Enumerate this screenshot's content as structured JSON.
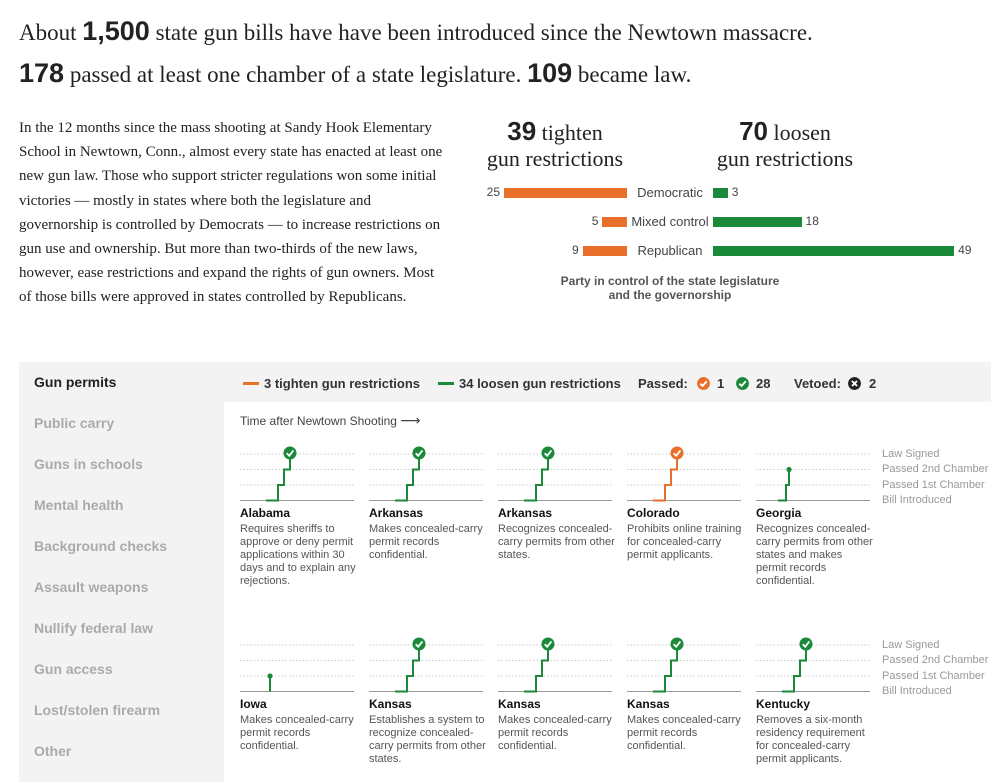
{
  "headline": {
    "line1_pre": "About ",
    "line1_num": "1,500",
    "line1_post": " state gun bills have have been introduced since the Newtown massacre.",
    "line2_num1": "178",
    "line2_mid": " passed at least one chamber of a state legislature. ",
    "line2_num2": "109",
    "line2_post": " became law."
  },
  "intro": "In the 12 months since the mass shooting at Sandy Hook Elementary School in Newtown, Conn., almost every state has enacted at least one new gun law. Those who support stricter regulations won some initial victories — mostly in states where both the legislature and governorship is controlled by Democrats — to increase restrictions on gun use and ownership. But more than two-thirds of the new laws, however, ease restrictions and expand the rights of gun owners. Most of those bills were approved in states controlled by Republicans.",
  "summary": {
    "tighten_num": "39",
    "tighten_word": "tighten",
    "tighten_sub": "gun restrictions",
    "loosen_num": "70",
    "loosen_word": "loosen",
    "loosen_sub": "gun restrictions",
    "caption": "Party in control of the state legislature and the governorship",
    "tighten_color": "#e8702a",
    "loosen_color": "#1a8a3a"
  },
  "chart_data": {
    "type": "bar",
    "categories": [
      "Democratic",
      "Mixed control",
      "Republican"
    ],
    "series": [
      {
        "name": "tighten gun restrictions",
        "values": [
          25,
          5,
          9
        ]
      },
      {
        "name": "loosen gun restrictions",
        "values": [
          3,
          18,
          49
        ]
      }
    ]
  },
  "nav": {
    "items": [
      "Gun permits",
      "Public carry",
      "Guns in schools",
      "Mental health",
      "Background checks",
      "Assault weapons",
      "Nullify federal law",
      "Gun access",
      "Lost/stolen firearm",
      "Other"
    ],
    "active": 0
  },
  "legend": {
    "tighten": "3 tighten gun restrictions",
    "loosen": "34 loosen gun restrictions",
    "passed_label": "Passed:",
    "passed_tighten": "1",
    "passed_loosen": "28",
    "vetoed_label": "Vetoed:",
    "vetoed": "2"
  },
  "time_label": "Time after Newtown Shooting",
  "stages": [
    "Law Signed",
    "Passed 2nd Chamber",
    "Passed 1st Chamber",
    "Bill Introduced"
  ],
  "bills": [
    {
      "state": "Alabama",
      "desc": "Requires sheriffs to approve or deny permit applications within 30 days and to explain any rejections.",
      "kind": "loosen",
      "level": 3
    },
    {
      "state": "Arkansas",
      "desc": "Makes concealed-carry permit records confidential.",
      "kind": "loosen",
      "level": 3
    },
    {
      "state": "Arkansas",
      "desc": "Recognizes concealed-carry permits from other states.",
      "kind": "loosen",
      "level": 3
    },
    {
      "state": "Colorado",
      "desc": "Prohibits online training for concealed-carry permit applicants.",
      "kind": "tighten",
      "level": 3
    },
    {
      "state": "Georgia",
      "desc": "Recognizes concealed-carry permits from other states and makes permit records confidential.",
      "kind": "loosen",
      "level": 2
    },
    {
      "state": "Iowa",
      "desc": "Makes concealed-carry permit records confidential.",
      "kind": "loosen",
      "level": 1
    },
    {
      "state": "Kansas",
      "desc": "Establishes a system to recognize concealed-carry permits from other states.",
      "kind": "loosen",
      "level": 3
    },
    {
      "state": "Kansas",
      "desc": "Makes concealed-carry permit records confidential.",
      "kind": "loosen",
      "level": 3
    },
    {
      "state": "Kansas",
      "desc": "Makes concealed-carry permit records confidential.",
      "kind": "loosen",
      "level": 3
    },
    {
      "state": "Kentucky",
      "desc": "Removes a six-month residency requirement for concealed-carry permit applicants.",
      "kind": "loosen",
      "level": 3
    }
  ]
}
